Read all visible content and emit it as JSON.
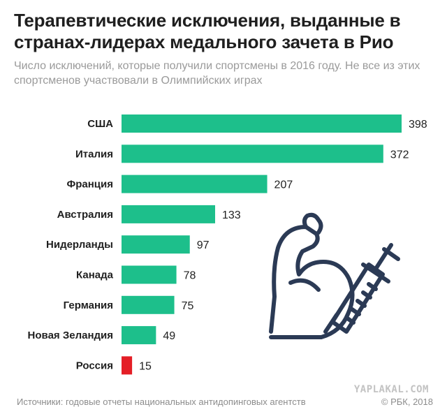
{
  "chart_data": {
    "type": "bar",
    "orientation": "horizontal",
    "title": "Терапевтические исключения, выданные в странах-лидерах медального зачета в Рио",
    "subtitle": "Число исключений, которые получили спортсмены в 2016 году. Не все из этих спортсменов участвовали в Олимпийских играх",
    "categories": [
      "США",
      "Италия",
      "Франция",
      "Австралия",
      "Нидерланды",
      "Канада",
      "Германия",
      "Новая Зеландия",
      "Россия"
    ],
    "values": [
      398,
      372,
      207,
      133,
      97,
      78,
      75,
      49,
      15
    ],
    "value_labels": [
      "398",
      "372",
      "207",
      "133",
      "97",
      "78",
      "75",
      "49",
      "15"
    ],
    "xlim": [
      0,
      398
    ],
    "grid": false,
    "legend": "none"
  },
  "colors": {
    "bar": "#1dbf8b",
    "highlight": "#e41e26",
    "highlight_category": "Россия",
    "title": "#1f1f1f",
    "subtitle": "#9a9a9a",
    "icon_stroke": "#2b3a55"
  },
  "illustration": {
    "icon": "flexed-arm-syringe-icon"
  },
  "footer": {
    "source": "Источники: годовые отчеты национальных антидопинговых агентств",
    "copyright": "© РБК, 2018"
  },
  "watermark": "YAPLAKAL.COM"
}
